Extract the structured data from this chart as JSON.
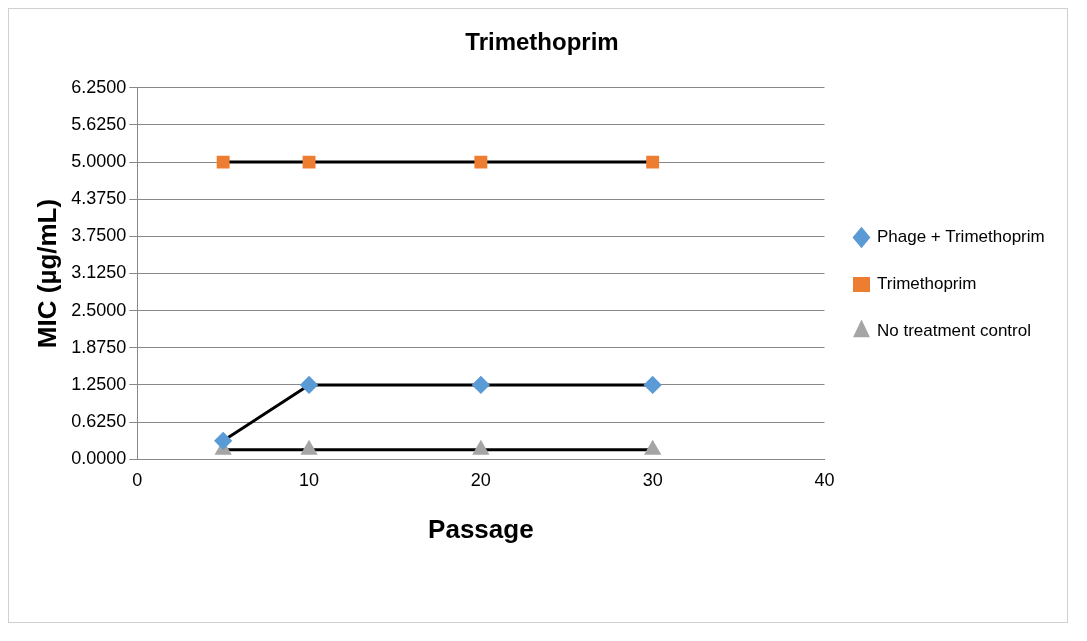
{
  "chart_data": {
    "type": "line",
    "title": "Trimethoprim",
    "xlabel": "Passage",
    "ylabel": "MIC (µg/mL)",
    "xlim": [
      0,
      40
    ],
    "xticks": [
      0,
      10,
      20,
      30,
      40
    ],
    "ylim": [
      0,
      6.25
    ],
    "yticks": [
      {
        "value": 0,
        "label": "0.0000"
      },
      {
        "value": 0.625,
        "label": "0.6250"
      },
      {
        "value": 1.25,
        "label": "1.2500"
      },
      {
        "value": 1.875,
        "label": "1.8750"
      },
      {
        "value": 2.5,
        "label": "2.5000"
      },
      {
        "value": 3.125,
        "label": "3.1250"
      },
      {
        "value": 3.75,
        "label": "3.7500"
      },
      {
        "value": 4.375,
        "label": "4.3750"
      },
      {
        "value": 5,
        "label": "5.0000"
      },
      {
        "value": 5.625,
        "label": "5.6250"
      },
      {
        "value": 6.25,
        "label": "6.2500"
      }
    ],
    "grid": "y",
    "legend": "right",
    "line_style": "solid",
    "x": [
      5,
      10,
      20,
      30
    ],
    "series": [
      {
        "name": "Phage + Trimethoprim",
        "color": "#5b9bd5",
        "marker": "diamond",
        "values": [
          0.31,
          1.25,
          1.25,
          1.25
        ]
      },
      {
        "name": "Trimethoprim",
        "color": "#ed7d31",
        "marker": "square",
        "values": [
          5,
          5,
          5,
          5
        ]
      },
      {
        "name": "No treatment control",
        "color": "#a5a5a5",
        "marker": "triangle",
        "values": [
          0.16,
          0.16,
          0.16,
          0.16
        ]
      }
    ]
  }
}
